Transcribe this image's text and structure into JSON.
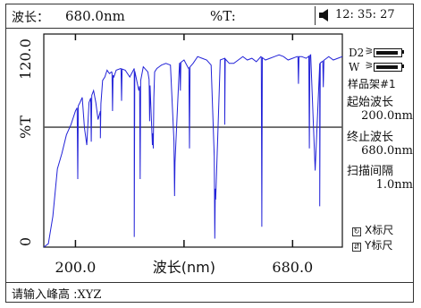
{
  "header": {
    "wavelength_label": "波长：",
    "wavelength_value": "680.0nm",
    "transmittance_label": "%T:",
    "transmittance_value": "",
    "clock": "12: 35: 27"
  },
  "side_panel": {
    "lamps": [
      {
        "label": "D2",
        "arrows": "⚞"
      },
      {
        "label": "W",
        "arrows": "⚞"
      }
    ],
    "holder": "样品架#1",
    "start_label": "起始波长",
    "start_value": "200.0nm",
    "end_label": "终止波长",
    "end_value": "680.0nm",
    "interval_label": "扫描间隔",
    "interval_value": "1.0nm",
    "x_scale": "X标尺",
    "y_scale": "Y标尺",
    "x_scale_icon": "x-scale-icon",
    "y_scale_icon": "y-scale-icon"
  },
  "bottom": {
    "prompt_label": "请输入峰高 :",
    "prompt_value": "XYZ"
  },
  "chart_data": {
    "type": "line",
    "xlabel": "波长(nm)",
    "ylabel": "%T",
    "xlim": [
      130,
      790
    ],
    "ylim": [
      0,
      120
    ],
    "x_ticks": [
      200.0,
      680.0
    ],
    "x_tick_labels": [
      "200.0",
      "680.0"
    ],
    "y_ticks": [
      0,
      120
    ],
    "y_tick_labels": [
      "0",
      "120.0"
    ],
    "cursor_y": 70.5,
    "series": [
      {
        "color": "#2323d8",
        "x": [
          130,
          140,
          150,
          160,
          170,
          180,
          190,
          200,
          210,
          215,
          220,
          225,
          230,
          240,
          245,
          250,
          255,
          260,
          265,
          270,
          275,
          280,
          285,
          290,
          300,
          310,
          320,
          330,
          340,
          350,
          360,
          365,
          370,
          375,
          380,
          385,
          390,
          400,
          410,
          420,
          430,
          440,
          450,
          460,
          470,
          480,
          490,
          500,
          510,
          520,
          530,
          540,
          550,
          560,
          570,
          580,
          590,
          600,
          610,
          620,
          630,
          640,
          650,
          660,
          670,
          680,
          690,
          700,
          710,
          720,
          730,
          740,
          750,
          760,
          770,
          780,
          790
        ],
        "y": [
          0,
          2,
          18,
          46,
          55,
          66,
          72,
          80,
          85,
          88,
          70,
          60,
          85,
          92,
          85,
          75,
          80,
          98,
          100,
          104,
          102,
          103,
          100,
          104,
          105,
          104,
          100,
          105,
          92,
          106,
          103,
          95,
          60,
          103,
          105,
          106,
          107,
          108,
          107,
          50,
          108,
          110,
          105,
          108,
          112,
          111,
          110,
          107,
          28,
          110,
          111,
          108,
          108,
          110,
          112,
          110,
          111,
          109,
          112,
          110,
          111,
          112,
          113,
          112,
          110,
          111,
          112,
          112,
          111,
          113,
          45,
          108,
          110,
          112,
          110,
          111,
          112
        ],
        "dips": [
          {
            "x": 205,
            "y": 40
          },
          {
            "x": 235,
            "y": 62
          },
          {
            "x": 255,
            "y": 64
          },
          {
            "x": 282,
            "y": 80
          },
          {
            "x": 302,
            "y": 86
          },
          {
            "x": 330,
            "y": 6
          },
          {
            "x": 343,
            "y": 40
          },
          {
            "x": 364,
            "y": 74
          },
          {
            "x": 372,
            "y": 58
          },
          {
            "x": 419,
            "y": 30
          },
          {
            "x": 432,
            "y": 92
          },
          {
            "x": 452,
            "y": 58
          },
          {
            "x": 508,
            "y": 5
          },
          {
            "x": 530,
            "y": 72
          },
          {
            "x": 612,
            "y": 12
          },
          {
            "x": 693,
            "y": 96
          },
          {
            "x": 717,
            "y": 58
          },
          {
            "x": 740,
            "y": 24
          },
          {
            "x": 748,
            "y": 94
          }
        ]
      }
    ]
  }
}
